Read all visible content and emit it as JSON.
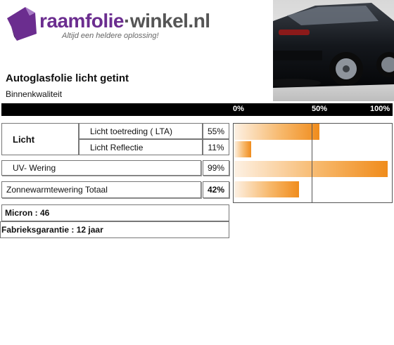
{
  "brand": {
    "name_part1": "raamfolie",
    "separator": "·",
    "name_part2": "winkel.nl",
    "tagline": "Altijd een heldere oplossing!",
    "logo_icon": "purple-window-film-icon",
    "color": "#6b2d8f"
  },
  "product": {
    "title": "Autoglasfolie  licht getint",
    "subtitle": "Binnenkwaliteit"
  },
  "scale": {
    "ticks": [
      "0%",
      "50%",
      "100%"
    ]
  },
  "specs": {
    "licht_group": "Licht",
    "rows": [
      {
        "label": "Licht toetreding ( LTA)",
        "value": "55%"
      },
      {
        "label": "Licht Reflectie",
        "value": "11%"
      },
      {
        "label": "UV- Wering",
        "value": "99%"
      },
      {
        "label": "Zonnewarmtewering Totaal",
        "value": "42%"
      }
    ],
    "micron": "Micron : 46",
    "warranty": "Fabrieksgarantie : 12 jaar"
  },
  "chart_data": {
    "type": "bar",
    "orientation": "horizontal",
    "categories": [
      "Licht toetreding ( LTA)",
      "Licht Reflectie",
      "UV- Wering",
      "Zonnewarmtewering Totaal"
    ],
    "values": [
      55,
      11,
      99,
      42
    ],
    "xlim": [
      0,
      100
    ],
    "tick_labels": [
      "0%",
      "50%",
      "100%"
    ],
    "reference_line": 50,
    "bar_color": "#f08c1c"
  }
}
